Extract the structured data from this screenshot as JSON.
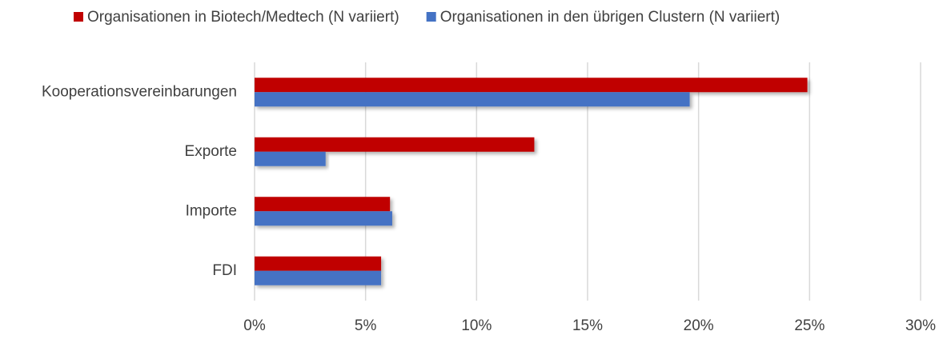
{
  "chart_data": {
    "type": "bar",
    "orientation": "horizontal",
    "categories": [
      "Kooperationsvereinbarungen",
      "Exporte",
      "Importe",
      "FDI"
    ],
    "series": [
      {
        "name": "Organisationen in Biotech/Medtech (N variiert)",
        "color": "#c00000",
        "values": [
          24.9,
          12.6,
          6.1,
          5.7
        ]
      },
      {
        "name": "Organisationen in den übrigen Clustern (N variiert)",
        "color": "#4472c4",
        "values": [
          19.6,
          3.2,
          6.2,
          5.7
        ]
      }
    ],
    "xlim": [
      0,
      30
    ],
    "xticks": [
      {
        "value": 0,
        "label": "0%"
      },
      {
        "value": 5,
        "label": "5%"
      },
      {
        "value": 10,
        "label": "10%"
      },
      {
        "value": 15,
        "label": "15%"
      },
      {
        "value": 20,
        "label": "20%"
      },
      {
        "value": 25,
        "label": "25%"
      },
      {
        "value": 30,
        "label": "30%"
      }
    ],
    "grid": true,
    "legend": "top"
  }
}
